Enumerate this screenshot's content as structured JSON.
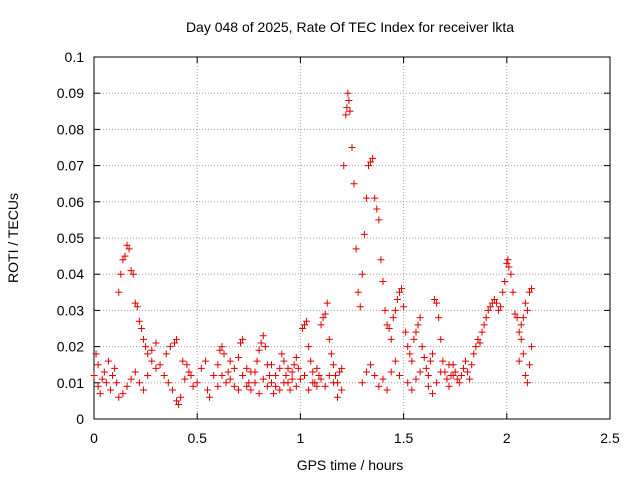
{
  "chart_data": {
    "type": "scatter",
    "title": "Day 048 of 2025, Rate Of TEC Index for receiver lkta",
    "xlabel": "GPS time / hours",
    "ylabel": "ROTI / TECUs",
    "xlim": [
      0,
      2.5
    ],
    "ylim": [
      0,
      0.1
    ],
    "xticks": [
      "0",
      "0.5",
      "1",
      "1.5",
      "2",
      "2.5"
    ],
    "yticks": [
      "0",
      "0.01",
      "0.02",
      "0.03",
      "0.04",
      "0.05",
      "0.06",
      "0.07",
      "0.08",
      "0.09",
      "0.1"
    ],
    "grid": true,
    "color": "#e00000",
    "series": [
      {
        "name": "ROTI",
        "marker": "+",
        "points": [
          [
            0.0,
            0.012
          ],
          [
            0.01,
            0.018
          ],
          [
            0.02,
            0.009
          ],
          [
            0.02,
            0.015
          ],
          [
            0.03,
            0.007
          ],
          [
            0.04,
            0.011
          ],
          [
            0.05,
            0.013
          ],
          [
            0.06,
            0.01
          ],
          [
            0.07,
            0.016
          ],
          [
            0.08,
            0.008
          ],
          [
            0.09,
            0.012
          ],
          [
            0.1,
            0.014
          ],
          [
            0.11,
            0.01
          ],
          [
            0.12,
            0.035
          ],
          [
            0.13,
            0.04
          ],
          [
            0.14,
            0.044
          ],
          [
            0.15,
            0.045
          ],
          [
            0.16,
            0.048
          ],
          [
            0.17,
            0.047
          ],
          [
            0.18,
            0.041
          ],
          [
            0.19,
            0.04
          ],
          [
            0.2,
            0.032
          ],
          [
            0.21,
            0.031
          ],
          [
            0.22,
            0.027
          ],
          [
            0.23,
            0.025
          ],
          [
            0.24,
            0.022
          ],
          [
            0.25,
            0.02
          ],
          [
            0.26,
            0.018
          ],
          [
            0.28,
            0.016
          ],
          [
            0.3,
            0.014
          ],
          [
            0.12,
            0.006
          ],
          [
            0.14,
            0.007
          ],
          [
            0.16,
            0.009
          ],
          [
            0.18,
            0.011
          ],
          [
            0.2,
            0.013
          ],
          [
            0.22,
            0.01
          ],
          [
            0.24,
            0.008
          ],
          [
            0.26,
            0.012
          ],
          [
            0.28,
            0.019
          ],
          [
            0.3,
            0.021
          ],
          [
            0.32,
            0.015
          ],
          [
            0.34,
            0.012
          ],
          [
            0.36,
            0.01
          ],
          [
            0.38,
            0.008
          ],
          [
            0.4,
            0.005
          ],
          [
            0.41,
            0.004
          ],
          [
            0.42,
            0.006
          ],
          [
            0.44,
            0.011
          ],
          [
            0.46,
            0.013
          ],
          [
            0.48,
            0.009
          ],
          [
            0.35,
            0.018
          ],
          [
            0.37,
            0.02
          ],
          [
            0.39,
            0.021
          ],
          [
            0.4,
            0.022
          ],
          [
            0.43,
            0.016
          ],
          [
            0.45,
            0.015
          ],
          [
            0.47,
            0.012
          ],
          [
            0.5,
            0.01
          ],
          [
            0.52,
            0.014
          ],
          [
            0.54,
            0.016
          ],
          [
            0.55,
            0.008
          ],
          [
            0.56,
            0.006
          ],
          [
            0.58,
            0.012
          ],
          [
            0.6,
            0.015
          ],
          [
            0.61,
            0.019
          ],
          [
            0.62,
            0.02
          ],
          [
            0.63,
            0.018
          ],
          [
            0.65,
            0.013
          ],
          [
            0.66,
            0.011
          ],
          [
            0.68,
            0.009
          ],
          [
            0.7,
            0.017
          ],
          [
            0.71,
            0.021
          ],
          [
            0.72,
            0.022
          ],
          [
            0.74,
            0.014
          ],
          [
            0.75,
            0.01
          ],
          [
            0.76,
            0.008
          ],
          [
            0.78,
            0.013
          ],
          [
            0.79,
            0.016
          ],
          [
            0.8,
            0.019
          ],
          [
            0.81,
            0.021
          ],
          [
            0.82,
            0.023
          ],
          [
            0.83,
            0.02
          ],
          [
            0.84,
            0.015
          ],
          [
            0.85,
            0.012
          ],
          [
            0.86,
            0.01
          ],
          [
            0.87,
            0.007
          ],
          [
            0.88,
            0.009
          ],
          [
            0.9,
            0.014
          ],
          [
            0.91,
            0.018
          ],
          [
            0.92,
            0.016
          ],
          [
            0.93,
            0.012
          ],
          [
            0.94,
            0.01
          ],
          [
            0.95,
            0.008
          ],
          [
            0.96,
            0.013
          ],
          [
            0.97,
            0.015
          ],
          [
            0.98,
            0.017
          ],
          [
            0.99,
            0.014
          ],
          [
            1.0,
            0.011
          ],
          [
            1.01,
            0.025
          ],
          [
            1.02,
            0.026
          ],
          [
            1.03,
            0.027
          ],
          [
            1.04,
            0.02
          ],
          [
            1.05,
            0.016
          ],
          [
            1.06,
            0.013
          ],
          [
            1.07,
            0.01
          ],
          [
            1.08,
            0.009
          ],
          [
            1.09,
            0.012
          ],
          [
            1.1,
            0.026
          ],
          [
            1.11,
            0.028
          ],
          [
            1.12,
            0.029
          ],
          [
            1.13,
            0.032
          ],
          [
            1.14,
            0.022
          ],
          [
            1.15,
            0.018
          ],
          [
            1.16,
            0.015
          ],
          [
            1.17,
            0.012
          ],
          [
            1.18,
            0.01
          ],
          [
            1.19,
            0.013
          ],
          [
            1.2,
            0.014
          ],
          [
            1.21,
            0.07
          ],
          [
            1.22,
            0.084
          ],
          [
            1.225,
            0.086
          ],
          [
            1.23,
            0.09
          ],
          [
            1.235,
            0.088
          ],
          [
            1.24,
            0.085
          ],
          [
            1.25,
            0.075
          ],
          [
            1.26,
            0.065
          ],
          [
            1.27,
            0.047
          ],
          [
            1.28,
            0.035
          ],
          [
            1.29,
            0.031
          ],
          [
            1.3,
            0.04
          ],
          [
            1.31,
            0.051
          ],
          [
            1.32,
            0.061
          ],
          [
            1.33,
            0.07
          ],
          [
            1.34,
            0.071
          ],
          [
            1.35,
            0.072
          ],
          [
            1.36,
            0.061
          ],
          [
            1.37,
            0.058
          ],
          [
            1.38,
            0.055
          ],
          [
            1.39,
            0.044
          ],
          [
            1.4,
            0.038
          ],
          [
            1.41,
            0.03
          ],
          [
            1.42,
            0.026
          ],
          [
            1.43,
            0.025
          ],
          [
            1.44,
            0.022
          ],
          [
            1.45,
            0.028
          ],
          [
            1.46,
            0.03
          ],
          [
            1.47,
            0.033
          ],
          [
            1.48,
            0.035
          ],
          [
            1.49,
            0.036
          ],
          [
            1.5,
            0.031
          ],
          [
            1.51,
            0.024
          ],
          [
            1.52,
            0.02
          ],
          [
            1.53,
            0.018
          ],
          [
            1.54,
            0.016
          ],
          [
            1.55,
            0.022
          ],
          [
            1.56,
            0.024
          ],
          [
            1.57,
            0.026
          ],
          [
            1.58,
            0.028
          ],
          [
            1.59,
            0.02
          ],
          [
            1.6,
            0.017
          ],
          [
            1.61,
            0.014
          ],
          [
            1.62,
            0.012
          ],
          [
            1.63,
            0.016
          ],
          [
            1.64,
            0.018
          ],
          [
            1.65,
            0.033
          ],
          [
            1.66,
            0.032
          ],
          [
            1.67,
            0.028
          ],
          [
            1.68,
            0.022
          ],
          [
            1.69,
            0.016
          ],
          [
            1.7,
            0.013
          ],
          [
            1.71,
            0.011
          ],
          [
            1.72,
            0.009
          ],
          [
            1.73,
            0.012
          ],
          [
            1.74,
            0.015
          ],
          [
            1.75,
            0.013
          ],
          [
            1.76,
            0.011
          ],
          [
            1.77,
            0.01
          ],
          [
            1.78,
            0.012
          ],
          [
            1.79,
            0.014
          ],
          [
            1.8,
            0.016
          ],
          [
            1.81,
            0.013
          ],
          [
            1.82,
            0.011
          ],
          [
            1.83,
            0.015
          ],
          [
            1.84,
            0.018
          ],
          [
            1.85,
            0.02
          ],
          [
            1.86,
            0.022
          ],
          [
            1.87,
            0.021
          ],
          [
            1.88,
            0.024
          ],
          [
            1.89,
            0.026
          ],
          [
            1.9,
            0.028
          ],
          [
            1.91,
            0.03
          ],
          [
            1.92,
            0.031
          ],
          [
            1.93,
            0.032
          ],
          [
            1.94,
            0.033
          ],
          [
            1.95,
            0.032
          ],
          [
            1.96,
            0.03
          ],
          [
            1.97,
            0.031
          ],
          [
            1.98,
            0.035
          ],
          [
            1.99,
            0.038
          ],
          [
            2.0,
            0.043
          ],
          [
            2.005,
            0.044
          ],
          [
            2.01,
            0.042
          ],
          [
            2.02,
            0.04
          ],
          [
            2.03,
            0.035
          ],
          [
            2.04,
            0.029
          ],
          [
            2.05,
            0.028
          ],
          [
            2.06,
            0.024
          ],
          [
            2.07,
            0.026
          ],
          [
            2.08,
            0.028
          ],
          [
            2.09,
            0.032
          ],
          [
            2.1,
            0.03
          ],
          [
            2.11,
            0.035
          ],
          [
            2.12,
            0.036
          ],
          [
            2.12,
            0.02
          ],
          [
            2.11,
            0.015
          ],
          [
            2.1,
            0.01
          ],
          [
            2.09,
            0.012
          ],
          [
            2.08,
            0.018
          ],
          [
            2.07,
            0.022
          ],
          [
            2.06,
            0.016
          ],
          [
            1.3,
            0.01
          ],
          [
            1.32,
            0.013
          ],
          [
            1.34,
            0.015
          ],
          [
            1.36,
            0.012
          ],
          [
            1.38,
            0.009
          ],
          [
            1.4,
            0.011
          ],
          [
            1.42,
            0.008
          ],
          [
            1.44,
            0.013
          ],
          [
            1.46,
            0.016
          ],
          [
            1.48,
            0.012
          ],
          [
            1.52,
            0.01
          ],
          [
            1.54,
            0.008
          ],
          [
            1.56,
            0.011
          ],
          [
            1.58,
            0.013
          ],
          [
            1.62,
            0.009
          ],
          [
            1.64,
            0.007
          ],
          [
            1.66,
            0.01
          ],
          [
            1.68,
            0.013
          ],
          [
            1.72,
            0.015
          ],
          [
            1.74,
            0.012
          ],
          [
            1.2,
            0.008
          ],
          [
            1.18,
            0.006
          ],
          [
            1.16,
            0.01
          ],
          [
            1.14,
            0.012
          ],
          [
            1.12,
            0.009
          ],
          [
            1.1,
            0.011
          ],
          [
            1.08,
            0.014
          ],
          [
            1.06,
            0.01
          ],
          [
            1.04,
            0.008
          ],
          [
            1.02,
            0.012
          ],
          [
            0.98,
            0.009
          ],
          [
            0.96,
            0.011
          ],
          [
            0.94,
            0.014
          ],
          [
            0.92,
            0.01
          ],
          [
            0.9,
            0.008
          ],
          [
            0.88,
            0.012
          ],
          [
            0.86,
            0.015
          ],
          [
            0.84,
            0.009
          ],
          [
            0.82,
            0.011
          ],
          [
            0.8,
            0.007
          ],
          [
            0.78,
            0.01
          ],
          [
            0.76,
            0.013
          ],
          [
            0.74,
            0.009
          ],
          [
            0.72,
            0.012
          ],
          [
            0.7,
            0.008
          ],
          [
            0.68,
            0.014
          ],
          [
            0.66,
            0.016
          ],
          [
            0.64,
            0.01
          ],
          [
            0.62,
            0.012
          ],
          [
            0.6,
            0.009
          ]
        ]
      }
    ]
  }
}
